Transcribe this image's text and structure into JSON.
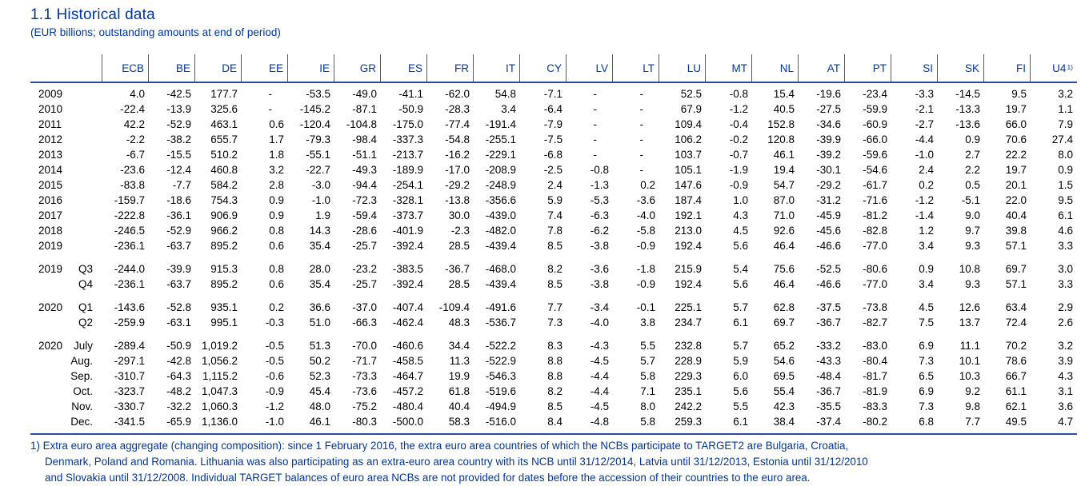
{
  "page": {
    "title": "1.1 Historical data",
    "subtitle": "(EUR billions; outstanding amounts at end of period)"
  },
  "colors": {
    "accent_text": "#0037a0",
    "rule_line": "#2a4d9b",
    "separator_line": "#3a5fa5",
    "data_text": "#000000"
  },
  "table": {
    "columns": [
      "ECB",
      "BE",
      "DE",
      "EE",
      "IE",
      "GR",
      "ES",
      "FR",
      "IT",
      "CY",
      "LV",
      "LT",
      "LU",
      "MT",
      "NL",
      "AT",
      "PT",
      "SI",
      "SK",
      "FI",
      "U4"
    ],
    "u4_superscript": "1)",
    "groups": [
      {
        "rows": [
          {
            "y": "2009",
            "p": "",
            "v": [
              "4.0",
              "-42.5",
              "177.7",
              "-",
              "-53.5",
              "-49.0",
              "-41.1",
              "-62.0",
              "54.8",
              "-7.1",
              "-",
              "-",
              "52.5",
              "-0.8",
              "15.4",
              "-19.6",
              "-23.4",
              "-3.3",
              "-14.5",
              "9.5",
              "3.2"
            ]
          },
          {
            "y": "2010",
            "p": "",
            "v": [
              "-22.4",
              "-13.9",
              "325.6",
              "-",
              "-145.2",
              "-87.1",
              "-50.9",
              "-28.3",
              "3.4",
              "-6.4",
              "-",
              "-",
              "67.9",
              "-1.2",
              "40.5",
              "-27.5",
              "-59.9",
              "-2.1",
              "-13.3",
              "19.7",
              "1.1"
            ]
          },
          {
            "y": "2011",
            "p": "",
            "v": [
              "42.2",
              "-52.9",
              "463.1",
              "0.6",
              "-120.4",
              "-104.8",
              "-175.0",
              "-77.4",
              "-191.4",
              "-7.9",
              "-",
              "-",
              "109.4",
              "-0.4",
              "152.8",
              "-34.6",
              "-60.9",
              "-2.7",
              "-13.6",
              "66.0",
              "7.9"
            ]
          },
          {
            "y": "2012",
            "p": "",
            "v": [
              "-2.2",
              "-38.2",
              "655.7",
              "1.7",
              "-79.3",
              "-98.4",
              "-337.3",
              "-54.8",
              "-255.1",
              "-7.5",
              "-",
              "-",
              "106.2",
              "-0.2",
              "120.8",
              "-39.9",
              "-66.0",
              "-4.4",
              "0.9",
              "70.6",
              "27.4"
            ]
          },
          {
            "y": "2013",
            "p": "",
            "v": [
              "-6.7",
              "-15.5",
              "510.2",
              "1.8",
              "-55.1",
              "-51.1",
              "-213.7",
              "-16.2",
              "-229.1",
              "-6.8",
              "-",
              "-",
              "103.7",
              "-0.7",
              "46.1",
              "-39.2",
              "-59.6",
              "-1.0",
              "2.7",
              "22.2",
              "8.0"
            ]
          },
          {
            "y": "2014",
            "p": "",
            "v": [
              "-23.6",
              "-12.4",
              "460.8",
              "3.2",
              "-22.7",
              "-49.3",
              "-189.9",
              "-17.0",
              "-208.9",
              "-2.5",
              "-0.8",
              "-",
              "105.1",
              "-1.9",
              "19.4",
              "-30.1",
              "-54.6",
              "2.4",
              "2.2",
              "19.7",
              "0.9"
            ]
          },
          {
            "y": "2015",
            "p": "",
            "v": [
              "-83.8",
              "-7.7",
              "584.2",
              "2.8",
              "-3.0",
              "-94.4",
              "-254.1",
              "-29.2",
              "-248.9",
              "2.4",
              "-1.3",
              "0.2",
              "147.6",
              "-0.9",
              "54.7",
              "-29.2",
              "-61.7",
              "0.2",
              "0.5",
              "20.1",
              "1.5"
            ]
          },
          {
            "y": "2016",
            "p": "",
            "v": [
              "-159.7",
              "-18.6",
              "754.3",
              "0.9",
              "-1.0",
              "-72.3",
              "-328.1",
              "-13.8",
              "-356.6",
              "5.9",
              "-5.3",
              "-3.6",
              "187.4",
              "1.0",
              "87.0",
              "-31.2",
              "-71.6",
              "-1.2",
              "-5.1",
              "22.0",
              "9.5"
            ]
          },
          {
            "y": "2017",
            "p": "",
            "v": [
              "-222.8",
              "-36.1",
              "906.9",
              "0.9",
              "1.9",
              "-59.4",
              "-373.7",
              "30.0",
              "-439.0",
              "7.4",
              "-6.3",
              "-4.0",
              "192.1",
              "4.3",
              "71.0",
              "-45.9",
              "-81.2",
              "-1.4",
              "9.0",
              "40.4",
              "6.1"
            ]
          },
          {
            "y": "2018",
            "p": "",
            "v": [
              "-246.5",
              "-52.9",
              "966.2",
              "0.8",
              "14.3",
              "-28.6",
              "-401.9",
              "-2.3",
              "-482.0",
              "7.8",
              "-6.2",
              "-5.8",
              "213.0",
              "4.5",
              "92.6",
              "-45.6",
              "-82.8",
              "1.2",
              "9.7",
              "39.8",
              "4.6"
            ]
          },
          {
            "y": "2019",
            "p": "",
            "v": [
              "-236.1",
              "-63.7",
              "895.2",
              "0.6",
              "35.4",
              "-25.7",
              "-392.4",
              "28.5",
              "-439.4",
              "8.5",
              "-3.8",
              "-0.9",
              "192.4",
              "5.6",
              "46.4",
              "-46.6",
              "-77.0",
              "3.4",
              "9.3",
              "57.1",
              "3.3"
            ]
          }
        ]
      },
      {
        "rows": [
          {
            "y": "2019",
            "p": "Q3",
            "v": [
              "-244.0",
              "-39.9",
              "915.3",
              "0.8",
              "28.0",
              "-23.2",
              "-383.5",
              "-36.7",
              "-468.0",
              "8.2",
              "-3.6",
              "-1.8",
              "215.9",
              "5.4",
              "75.6",
              "-52.5",
              "-80.6",
              "0.9",
              "10.8",
              "69.7",
              "3.0"
            ]
          },
          {
            "y": "",
            "p": "Q4",
            "v": [
              "-236.1",
              "-63.7",
              "895.2",
              "0.6",
              "35.4",
              "-25.7",
              "-392.4",
              "28.5",
              "-439.4",
              "8.5",
              "-3.8",
              "-0.9",
              "192.4",
              "5.6",
              "46.4",
              "-46.6",
              "-77.0",
              "3.4",
              "9.3",
              "57.1",
              "3.3"
            ]
          }
        ]
      },
      {
        "rows": [
          {
            "y": "2020",
            "p": "Q1",
            "v": [
              "-143.6",
              "-52.8",
              "935.1",
              "0.2",
              "36.6",
              "-37.0",
              "-407.4",
              "-109.4",
              "-491.6",
              "7.7",
              "-3.4",
              "-0.1",
              "225.1",
              "5.7",
              "62.8",
              "-37.5",
              "-73.8",
              "4.5",
              "12.6",
              "63.4",
              "2.9"
            ]
          },
          {
            "y": "",
            "p": "Q2",
            "v": [
              "-259.9",
              "-63.1",
              "995.1",
              "-0.3",
              "51.0",
              "-66.3",
              "-462.4",
              "48.3",
              "-536.7",
              "7.3",
              "-4.0",
              "3.8",
              "234.7",
              "6.1",
              "69.7",
              "-36.7",
              "-82.7",
              "7.5",
              "13.7",
              "72.4",
              "2.6"
            ]
          }
        ]
      },
      {
        "rows": [
          {
            "y": "2020",
            "p": "July",
            "v": [
              "-289.4",
              "-50.9",
              "1,019.2",
              "-0.5",
              "51.3",
              "-70.0",
              "-460.6",
              "34.4",
              "-522.2",
              "8.3",
              "-4.3",
              "5.5",
              "232.8",
              "5.7",
              "65.2",
              "-33.2",
              "-83.0",
              "6.9",
              "11.1",
              "70.2",
              "3.2"
            ]
          },
          {
            "y": "",
            "p": "Aug.",
            "v": [
              "-297.1",
              "-42.8",
              "1,056.2",
              "-0.5",
              "50.2",
              "-71.7",
              "-458.5",
              "11.3",
              "-522.9",
              "8.8",
              "-4.5",
              "5.7",
              "228.9",
              "5.9",
              "54.6",
              "-43.3",
              "-80.4",
              "7.3",
              "10.1",
              "78.6",
              "3.9"
            ]
          },
          {
            "y": "",
            "p": "Sep.",
            "v": [
              "-310.7",
              "-64.3",
              "1,115.2",
              "-0.6",
              "52.3",
              "-73.3",
              "-464.7",
              "19.9",
              "-546.3",
              "8.8",
              "-4.4",
              "5.8",
              "229.3",
              "6.0",
              "69.5",
              "-48.4",
              "-81.7",
              "6.5",
              "10.3",
              "66.7",
              "4.3"
            ]
          },
          {
            "y": "",
            "p": "Oct.",
            "v": [
              "-323.7",
              "-48.2",
              "1,047.3",
              "-0.9",
              "45.4",
              "-73.6",
              "-457.2",
              "61.8",
              "-519.6",
              "8.2",
              "-4.4",
              "7.1",
              "235.1",
              "5.6",
              "55.4",
              "-36.7",
              "-81.9",
              "6.9",
              "9.2",
              "61.1",
              "3.1"
            ]
          },
          {
            "y": "",
            "p": "Nov.",
            "v": [
              "-330.7",
              "-32.2",
              "1,060.3",
              "-1.2",
              "48.0",
              "-75.2",
              "-480.4",
              "40.4",
              "-494.9",
              "8.5",
              "-4.5",
              "8.0",
              "242.2",
              "5.5",
              "42.3",
              "-35.5",
              "-83.3",
              "7.3",
              "9.8",
              "62.1",
              "3.6"
            ]
          },
          {
            "y": "",
            "p": "Dec.",
            "v": [
              "-341.5",
              "-65.9",
              "1,136.0",
              "-1.0",
              "46.1",
              "-80.3",
              "-500.0",
              "58.3",
              "-516.0",
              "8.4",
              "-4.8",
              "5.8",
              "259.3",
              "6.1",
              "38.4",
              "-37.4",
              "-80.2",
              "6.8",
              "7.7",
              "49.5",
              "4.7"
            ]
          }
        ]
      }
    ]
  },
  "footnote": {
    "lines": [
      "1) Extra euro area aggregate (changing composition): since 1 February 2016, the extra euro area countries of which the NCBs participate to TARGET2 are Bulgaria, Croatia,",
      "Denmark, Poland and Romania. Lithuania was also participating as an extra-euro area country with its NCB until 31/12/2014, Latvia until 31/12/2013, Estonia until 31/12/2010",
      "and Slovakia until 31/12/2008. Individual TARGET balances of euro area NCBs are not provided for dates before the accession of their countries to the euro area."
    ]
  }
}
